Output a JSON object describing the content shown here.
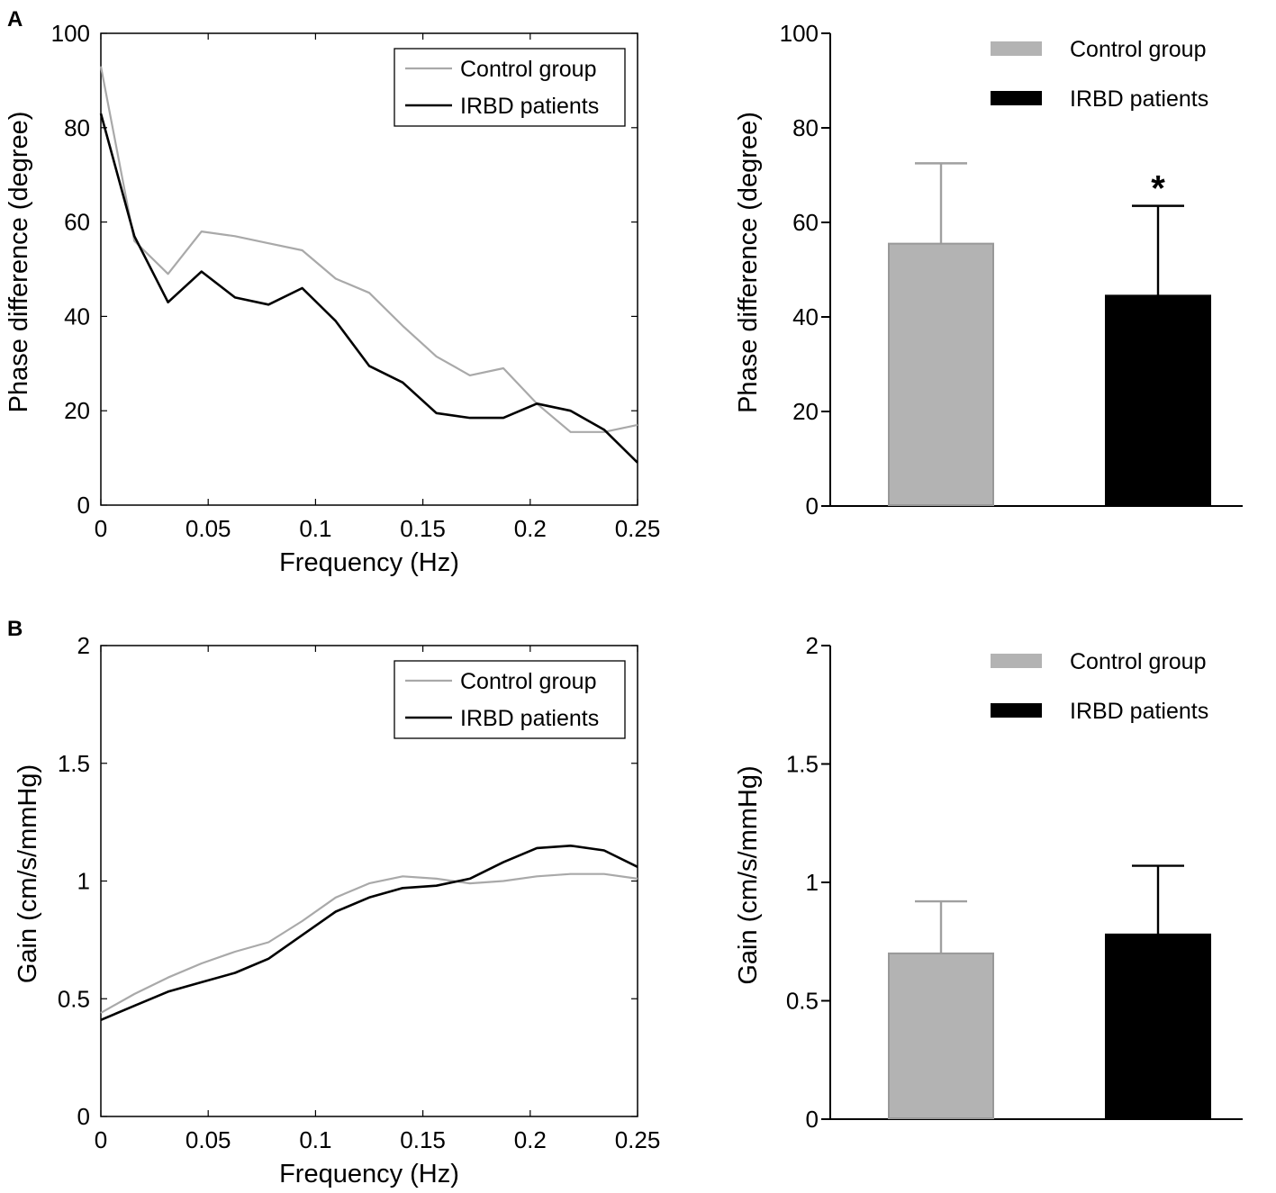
{
  "panels": {
    "a": "A",
    "b": "B"
  },
  "colors": {
    "control": "#a9a9a9",
    "irbd": "#000000"
  },
  "chart_data": [
    {
      "id": "phase-line",
      "type": "line",
      "title": "",
      "xlabel": "Frequency (Hz)",
      "ylabel": "Phase difference (degree)",
      "xlim": [
        0,
        0.25
      ],
      "ylim": [
        0,
        100
      ],
      "xticks": [
        0,
        0.05,
        0.1,
        0.15,
        0.2,
        0.25
      ],
      "xtick_labels": [
        "0",
        "0.05",
        "0.1",
        "0.15",
        "0.2",
        "0.25"
      ],
      "yticks": [
        0,
        20,
        40,
        60,
        80,
        100
      ],
      "ytick_labels": [
        "0",
        "20",
        "40",
        "60",
        "80",
        "100"
      ],
      "legend_position": "top-right",
      "series": [
        {
          "name": "Control group",
          "color": "#a9a9a9",
          "x": [
            0,
            0.0156,
            0.0313,
            0.0469,
            0.0625,
            0.0781,
            0.0938,
            0.1094,
            0.125,
            0.1406,
            0.1563,
            0.1719,
            0.1875,
            0.2031,
            0.2188,
            0.2344,
            0.25
          ],
          "y": [
            93,
            56,
            49,
            58,
            57,
            55.5,
            54,
            48,
            45,
            38,
            31.5,
            27.5,
            29,
            21.5,
            15.5,
            15.5,
            17
          ]
        },
        {
          "name": "IRBD patients",
          "color": "#000000",
          "x": [
            0,
            0.0156,
            0.0313,
            0.0469,
            0.0625,
            0.0781,
            0.0938,
            0.1094,
            0.125,
            0.1406,
            0.1563,
            0.1719,
            0.1875,
            0.2031,
            0.2188,
            0.2344,
            0.25
          ],
          "y": [
            83,
            57,
            43,
            49.5,
            44,
            42.5,
            46,
            39,
            29.5,
            26,
            19.5,
            18.5,
            18.5,
            21.5,
            20,
            16,
            9
          ]
        }
      ]
    },
    {
      "id": "phase-bar",
      "type": "bar",
      "title": "",
      "xlabel": "",
      "ylabel": "Phase difference (degree)",
      "ylim": [
        0,
        100
      ],
      "yticks": [
        0,
        20,
        40,
        60,
        80,
        100
      ],
      "ytick_labels": [
        "0",
        "20",
        "40",
        "60",
        "80",
        "100"
      ],
      "legend_position": "top-right",
      "series": [
        {
          "name": "Control group",
          "color": "#a9a9a9",
          "value": 55.5,
          "error": 17
        },
        {
          "name": "IRBD patients",
          "color": "#000000",
          "value": 44.5,
          "error": 19
        }
      ],
      "significance": [
        {
          "series": "IRBD patients",
          "label": "*"
        }
      ]
    },
    {
      "id": "gain-line",
      "type": "line",
      "title": "",
      "xlabel": "Frequency (Hz)",
      "ylabel": "Gain (cm/s/mmHg)",
      "xlim": [
        0,
        0.25
      ],
      "ylim": [
        0,
        2
      ],
      "xticks": [
        0,
        0.05,
        0.1,
        0.15,
        0.2,
        0.25
      ],
      "xtick_labels": [
        "0",
        "0.05",
        "0.1",
        "0.15",
        "0.2",
        "0.25"
      ],
      "yticks": [
        0,
        0.5,
        1,
        1.5,
        2
      ],
      "ytick_labels": [
        "0",
        "0.5",
        "1",
        "1.5",
        "2"
      ],
      "legend_position": "top-right",
      "series": [
        {
          "name": "Control group",
          "color": "#a9a9a9",
          "x": [
            0,
            0.0156,
            0.0313,
            0.0469,
            0.0625,
            0.0781,
            0.0938,
            0.1094,
            0.125,
            0.1406,
            0.1563,
            0.1719,
            0.1875,
            0.2031,
            0.2188,
            0.2344,
            0.25
          ],
          "y": [
            0.44,
            0.52,
            0.59,
            0.65,
            0.7,
            0.74,
            0.83,
            0.93,
            0.99,
            1.02,
            1.01,
            0.99,
            1.0,
            1.02,
            1.03,
            1.03,
            1.01
          ]
        },
        {
          "name": "IRBD patients",
          "color": "#000000",
          "x": [
            0,
            0.0156,
            0.0313,
            0.0469,
            0.0625,
            0.0781,
            0.0938,
            0.1094,
            0.125,
            0.1406,
            0.1563,
            0.1719,
            0.1875,
            0.2031,
            0.2188,
            0.2344,
            0.25
          ],
          "y": [
            0.41,
            0.47,
            0.53,
            0.57,
            0.61,
            0.67,
            0.77,
            0.87,
            0.93,
            0.97,
            0.98,
            1.01,
            1.08,
            1.14,
            1.15,
            1.13,
            1.06
          ]
        }
      ]
    },
    {
      "id": "gain-bar",
      "type": "bar",
      "title": "",
      "xlabel": "",
      "ylabel": "Gain (cm/s/mmHg)",
      "ylim": [
        0,
        2
      ],
      "yticks": [
        0,
        0.5,
        1,
        1.5,
        2
      ],
      "ytick_labels": [
        "0",
        "0.5",
        "1",
        "1.5",
        "2"
      ],
      "legend_position": "top-right",
      "series": [
        {
          "name": "Control group",
          "color": "#a9a9a9",
          "value": 0.7,
          "error": 0.22
        },
        {
          "name": "IRBD patients",
          "color": "#000000",
          "value": 0.78,
          "error": 0.29
        }
      ]
    }
  ]
}
